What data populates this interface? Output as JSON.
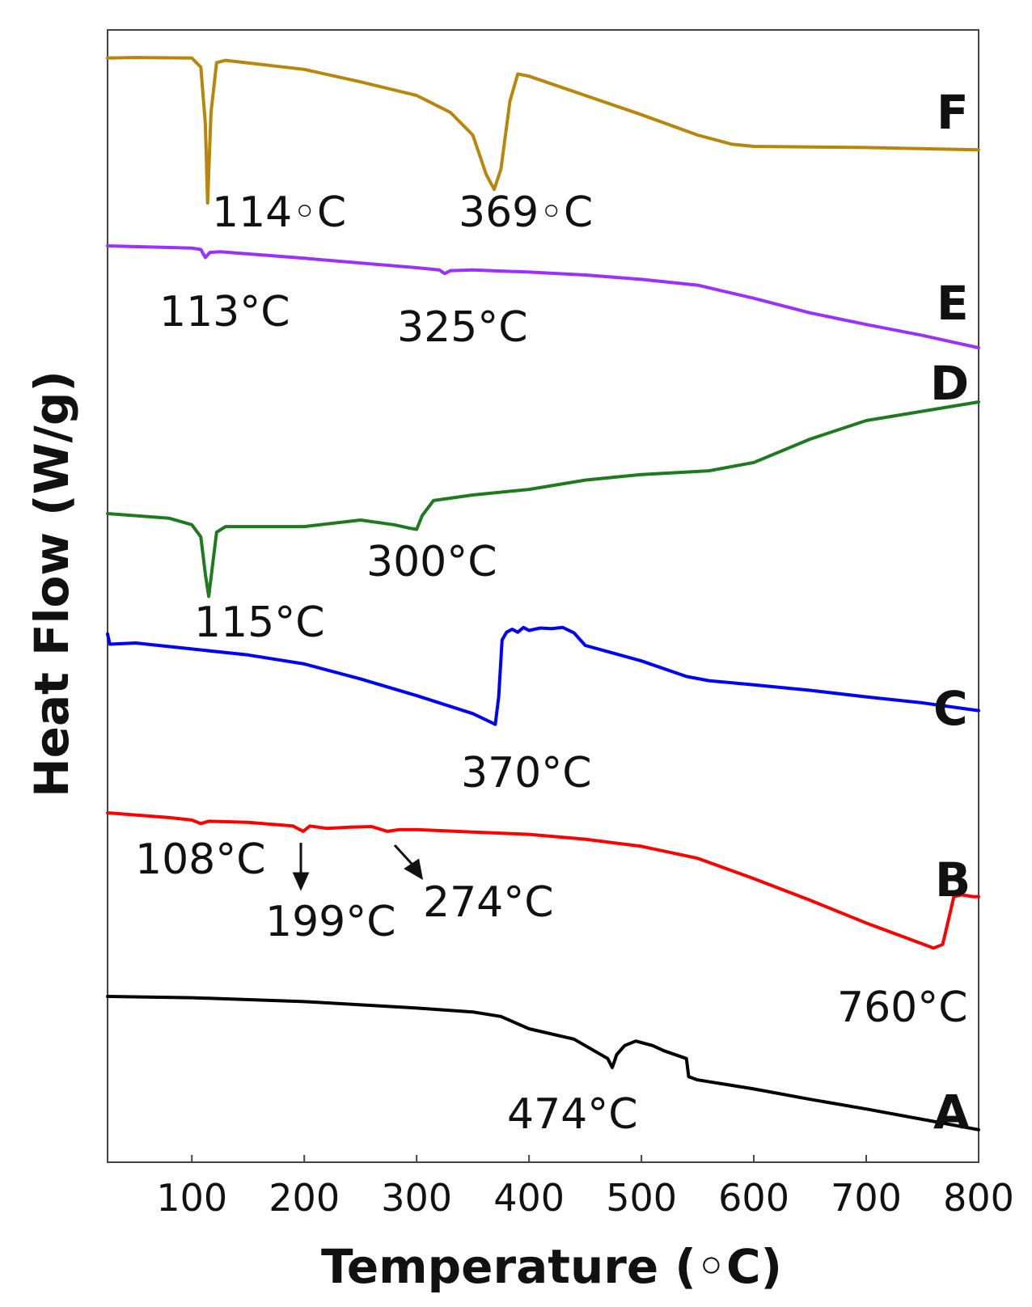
{
  "chart_data": {
    "type": "line",
    "title": "",
    "xlabel": "Temperature (◦C)",
    "ylabel": "Heat Flow (W/g)",
    "xlim": [
      25,
      800
    ],
    "xticks": [
      100,
      200,
      300,
      400,
      500,
      600,
      700,
      800
    ],
    "y_axis_ticks": "none",
    "grid": false,
    "series": [
      {
        "name": "F",
        "color": "#b8860b",
        "points": [
          [
            25,
            0.2
          ],
          [
            50,
            0.15
          ],
          [
            100,
            0.2
          ],
          [
            108,
            1.0
          ],
          [
            112,
            6.0
          ],
          [
            114,
            13.0
          ],
          [
            117,
            5.0
          ],
          [
            122,
            0.6
          ],
          [
            130,
            0.4
          ],
          [
            200,
            1.2
          ],
          [
            250,
            2.3
          ],
          [
            300,
            3.5
          ],
          [
            330,
            5.0
          ],
          [
            350,
            7.0
          ],
          [
            362,
            10.5
          ],
          [
            369,
            11.8
          ],
          [
            375,
            10.0
          ],
          [
            383,
            4.0
          ],
          [
            390,
            1.6
          ],
          [
            400,
            1.8
          ],
          [
            450,
            3.5
          ],
          [
            500,
            5.2
          ],
          [
            550,
            7.0
          ],
          [
            580,
            7.8
          ],
          [
            600,
            8.0
          ],
          [
            700,
            8.1
          ],
          [
            800,
            8.3
          ]
        ],
        "annotations": [
          {
            "x": 114,
            "label": "114◦C"
          },
          {
            "x": 369,
            "label": "369◦C"
          }
        ]
      },
      {
        "name": "E",
        "color": "#9b30ff",
        "points": [
          [
            25,
            0.0
          ],
          [
            100,
            0.3
          ],
          [
            108,
            0.5
          ],
          [
            112,
            1.6
          ],
          [
            116,
            0.9
          ],
          [
            125,
            0.8
          ],
          [
            200,
            1.7
          ],
          [
            300,
            3.0
          ],
          [
            320,
            3.3
          ],
          [
            325,
            3.8
          ],
          [
            330,
            3.4
          ],
          [
            350,
            3.3
          ],
          [
            400,
            3.6
          ],
          [
            450,
            4.0
          ],
          [
            500,
            4.6
          ],
          [
            550,
            5.4
          ],
          [
            600,
            7.2
          ],
          [
            650,
            9.2
          ],
          [
            700,
            10.8
          ],
          [
            750,
            12.3
          ],
          [
            800,
            14.0
          ]
        ],
        "annotations": [
          {
            "x": 113,
            "label": "113°C"
          },
          {
            "x": 325,
            "label": "325°C"
          }
        ]
      },
      {
        "name": "D",
        "color": "#1f7a1f",
        "points": [
          [
            25,
            0.0
          ],
          [
            80,
            0.5
          ],
          [
            100,
            1.2
          ],
          [
            108,
            2.5
          ],
          [
            112,
            6.5
          ],
          [
            115,
            8.9
          ],
          [
            118,
            6.0
          ],
          [
            122,
            2.0
          ],
          [
            130,
            1.4
          ],
          [
            200,
            1.4
          ],
          [
            250,
            0.7
          ],
          [
            280,
            1.2
          ],
          [
            295,
            1.6
          ],
          [
            300,
            1.7
          ],
          [
            305,
            0.2
          ],
          [
            315,
            -1.4
          ],
          [
            350,
            -2.0
          ],
          [
            400,
            -2.6
          ],
          [
            450,
            -3.6
          ],
          [
            500,
            -4.2
          ],
          [
            560,
            -4.6
          ],
          [
            600,
            -5.5
          ],
          [
            650,
            -8.0
          ],
          [
            700,
            -10.0
          ],
          [
            750,
            -11.0
          ],
          [
            800,
            -12.0
          ]
        ],
        "annotations": [
          {
            "x": 115,
            "label": "115°C"
          },
          {
            "x": 300,
            "label": "300°C"
          }
        ]
      },
      {
        "name": "C",
        "color": "#0000ff",
        "points": [
          [
            25,
            -1.5
          ],
          [
            27,
            0.2
          ],
          [
            50,
            0.0
          ],
          [
            100,
            1.0
          ],
          [
            150,
            2.0
          ],
          [
            200,
            3.5
          ],
          [
            250,
            6.0
          ],
          [
            300,
            8.8
          ],
          [
            350,
            11.8
          ],
          [
            370,
            13.6
          ],
          [
            373,
            9.0
          ],
          [
            376,
            -0.5
          ],
          [
            380,
            -1.8
          ],
          [
            385,
            -2.3
          ],
          [
            390,
            -1.8
          ],
          [
            395,
            -2.6
          ],
          [
            400,
            -2.1
          ],
          [
            410,
            -2.5
          ],
          [
            420,
            -2.4
          ],
          [
            430,
            -2.6
          ],
          [
            440,
            -1.7
          ],
          [
            450,
            0.4
          ],
          [
            500,
            3.0
          ],
          [
            540,
            5.6
          ],
          [
            560,
            6.3
          ],
          [
            600,
            7.0
          ],
          [
            650,
            7.9
          ],
          [
            700,
            9.0
          ],
          [
            750,
            10.0
          ],
          [
            800,
            11.3
          ]
        ],
        "annotations": [
          {
            "x": 370,
            "label": "370°C"
          }
        ]
      },
      {
        "name": "B",
        "color": "#ff0000",
        "points": [
          [
            25,
            0.0
          ],
          [
            80,
            0.8
          ],
          [
            100,
            1.2
          ],
          [
            108,
            1.8
          ],
          [
            115,
            1.4
          ],
          [
            150,
            1.6
          ],
          [
            190,
            2.2
          ],
          [
            199,
            3.1
          ],
          [
            205,
            2.2
          ],
          [
            220,
            2.6
          ],
          [
            240,
            2.4
          ],
          [
            260,
            2.3
          ],
          [
            274,
            3.1
          ],
          [
            285,
            2.8
          ],
          [
            300,
            2.8
          ],
          [
            350,
            3.2
          ],
          [
            400,
            3.6
          ],
          [
            450,
            4.4
          ],
          [
            500,
            5.6
          ],
          [
            550,
            7.6
          ],
          [
            600,
            11.0
          ],
          [
            650,
            14.6
          ],
          [
            700,
            18.4
          ],
          [
            740,
            21.2
          ],
          [
            760,
            22.6
          ],
          [
            768,
            22.0
          ],
          [
            773,
            18.0
          ],
          [
            778,
            14.0
          ],
          [
            785,
            13.7
          ],
          [
            795,
            14.0
          ],
          [
            800,
            14.0
          ]
        ],
        "annotations": [
          {
            "x": 108,
            "label": "108°C"
          },
          {
            "x": 199,
            "label": "199°C"
          },
          {
            "x": 274,
            "label": "274°C"
          },
          {
            "x": 760,
            "label": "760°C"
          }
        ]
      },
      {
        "name": "A",
        "color": "#000000",
        "points": [
          [
            25,
            0.0
          ],
          [
            100,
            0.2
          ],
          [
            200,
            0.8
          ],
          [
            300,
            1.8
          ],
          [
            350,
            2.4
          ],
          [
            375,
            3.1
          ],
          [
            400,
            5.0
          ],
          [
            440,
            6.6
          ],
          [
            460,
            8.6
          ],
          [
            470,
            9.6
          ],
          [
            474,
            11.0
          ],
          [
            478,
            9.0
          ],
          [
            485,
            7.6
          ],
          [
            495,
            6.9
          ],
          [
            510,
            7.6
          ],
          [
            520,
            8.4
          ],
          [
            540,
            9.6
          ],
          [
            542,
            12.4
          ],
          [
            550,
            12.9
          ],
          [
            600,
            14.3
          ],
          [
            650,
            15.9
          ],
          [
            700,
            17.4
          ],
          [
            750,
            19.0
          ],
          [
            800,
            20.6
          ]
        ],
        "annotations": [
          {
            "x": 474,
            "label": "474°C"
          }
        ]
      }
    ]
  }
}
